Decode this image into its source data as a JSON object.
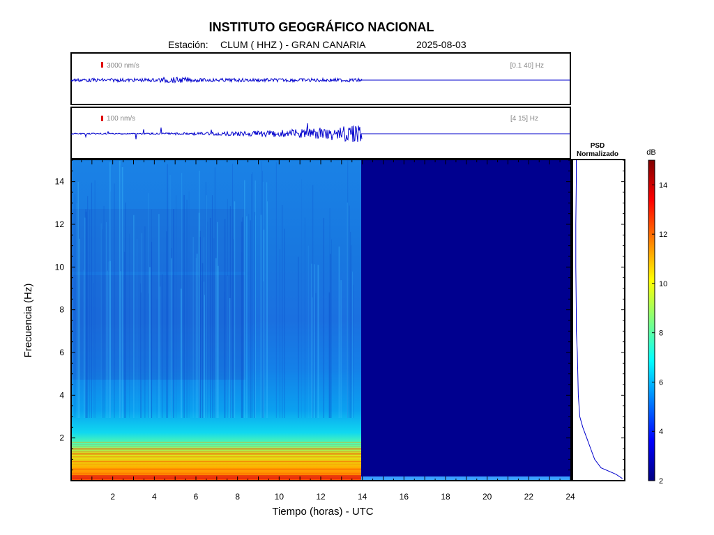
{
  "header": {
    "institute": "INSTITUTO GEOGRÁFICO NACIONAL",
    "station_prefix": "Estación:",
    "station": "CLUM ( HHZ ) - GRAN CANARIA",
    "date": "2025-08-03"
  },
  "traces": [
    {
      "scale": "3000 nm/s",
      "band": "[0.1 40] Hz"
    },
    {
      "scale": "100 nm/s",
      "band": "[4 15] Hz"
    }
  ],
  "psd": {
    "title_line1": "PSD",
    "title_line2": "Normalizado"
  },
  "colorbar": {
    "unit": "dB",
    "range": [
      2,
      15
    ],
    "ticks": [
      2,
      4,
      6,
      8,
      10,
      12,
      14
    ],
    "colormap": [
      "#00007f",
      "#0000ff",
      "#007fff",
      "#00ffff",
      "#7fff7f",
      "#ffff00",
      "#ff7f00",
      "#ff0000",
      "#7f0000"
    ]
  },
  "chart_data": {
    "type": "heatmap",
    "xlabel": "Tiempo (horas) - UTC",
    "ylabel": "Frecuencia  (Hz)",
    "xlim": [
      0,
      24
    ],
    "ylim": [
      0,
      15
    ],
    "xticks": [
      2,
      4,
      6,
      8,
      10,
      12,
      14,
      16,
      18,
      20,
      22,
      24
    ],
    "yticks": [
      2,
      4,
      6,
      8,
      10,
      12,
      14
    ],
    "data_end_hour": 14,
    "psd_curve": [
      {
        "f": 0.1,
        "p": 0.98
      },
      {
        "f": 0.3,
        "p": 0.85
      },
      {
        "f": 0.6,
        "p": 0.55
      },
      {
        "f": 1.0,
        "p": 0.42
      },
      {
        "f": 1.5,
        "p": 0.34
      },
      {
        "f": 2.0,
        "p": 0.26
      },
      {
        "f": 2.5,
        "p": 0.18
      },
      {
        "f": 3.0,
        "p": 0.12
      },
      {
        "f": 4.0,
        "p": 0.09
      },
      {
        "f": 5.0,
        "p": 0.08
      },
      {
        "f": 6.0,
        "p": 0.07
      },
      {
        "f": 7.0,
        "p": 0.05
      },
      {
        "f": 8.0,
        "p": 0.05
      },
      {
        "f": 10.0,
        "p": 0.04
      },
      {
        "f": 12.0,
        "p": 0.04
      },
      {
        "f": 14.0,
        "p": 0.05
      },
      {
        "f": 15.0,
        "p": 0.05
      }
    ]
  }
}
